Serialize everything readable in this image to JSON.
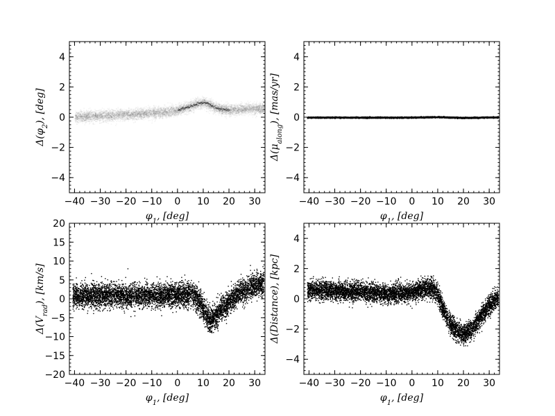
{
  "chart_data": [
    {
      "id": "phi2",
      "type": "scatter",
      "render": "density",
      "xlabel": "$\\phi_1, [deg]$",
      "ylabel": "$\\Delta(\\phi_2), [deg]$",
      "xlim": [
        -42,
        34
      ],
      "ylim": [
        -5,
        5
      ],
      "xticks": [
        -40,
        -30,
        -20,
        -10,
        0,
        10,
        20,
        30
      ],
      "yticks": [
        -4,
        -2,
        0,
        2,
        4
      ],
      "trend": {
        "x": [
          -40,
          -30,
          -20,
          -10,
          -5,
          0,
          3,
          6,
          8,
          10,
          12,
          14,
          17,
          20,
          24,
          28,
          32
        ],
        "y": [
          0.05,
          0.1,
          0.2,
          0.3,
          0.35,
          0.5,
          0.65,
          0.8,
          0.95,
          1.0,
          0.9,
          0.7,
          0.55,
          0.5,
          0.55,
          0.6,
          0.6
        ]
      },
      "scatter_sd": 0.18
    },
    {
      "id": "pm_along",
      "type": "scatter",
      "render": "points",
      "xlabel": "$\\phi_1, [deg]$",
      "ylabel": "$\\Delta(\\mu_{along}), [mas/yr]$",
      "xlim": [
        -42,
        34
      ],
      "ylim": [
        -5,
        5
      ],
      "xticks": [
        -40,
        -30,
        -20,
        -10,
        0,
        10,
        20,
        30
      ],
      "yticks": [
        -4,
        -2,
        0,
        2,
        4
      ],
      "trend": {
        "x": [
          -42,
          0,
          10,
          20,
          34
        ],
        "y": [
          0,
          0,
          0.03,
          -0.02,
          0.02
        ]
      },
      "scatter_sd": 0.02
    },
    {
      "id": "vrad",
      "type": "scatter",
      "render": "points",
      "xlabel": "$\\phi_1, [deg]$",
      "ylabel": "$\\Delta(V_{rad}), [km/s]$",
      "xlim": [
        -42,
        34
      ],
      "ylim": [
        -20,
        20
      ],
      "xticks": [
        -40,
        -30,
        -20,
        -10,
        0,
        10,
        20,
        30
      ],
      "yticks": [
        -20,
        -15,
        -10,
        -5,
        0,
        5,
        10,
        15,
        20
      ],
      "trend": {
        "x": [
          -40,
          -30,
          -20,
          -10,
          0,
          5,
          8,
          10,
          12,
          14,
          17,
          20,
          24,
          28,
          32
        ],
        "y": [
          0.8,
          1,
          1,
          1,
          1.2,
          1.5,
          0,
          -3,
          -5.5,
          -5,
          -2.5,
          -0.5,
          1.5,
          3,
          4
        ]
      },
      "scatter_sd": 1.6
    },
    {
      "id": "distance",
      "type": "scatter",
      "render": "points",
      "xlabel": "$\\phi_1, [deg]$",
      "ylabel": "$\\Delta(Distance), [kpc]$",
      "xlim": [
        -42,
        34
      ],
      "ylim": [
        -5,
        5
      ],
      "xticks": [
        -40,
        -30,
        -20,
        -10,
        0,
        10,
        20,
        30
      ],
      "yticks": [
        -4,
        -2,
        0,
        2,
        4
      ],
      "trend": {
        "x": [
          -40,
          -30,
          -20,
          -10,
          0,
          5,
          8,
          10,
          12,
          15,
          18,
          20,
          23,
          26,
          30,
          33
        ],
        "y": [
          0.6,
          0.55,
          0.5,
          0.35,
          0.45,
          0.7,
          0.75,
          0.3,
          -0.7,
          -1.7,
          -2.2,
          -2.3,
          -2.0,
          -1.3,
          -0.4,
          0.1
        ]
      },
      "scatter_sd": 0.32
    }
  ]
}
